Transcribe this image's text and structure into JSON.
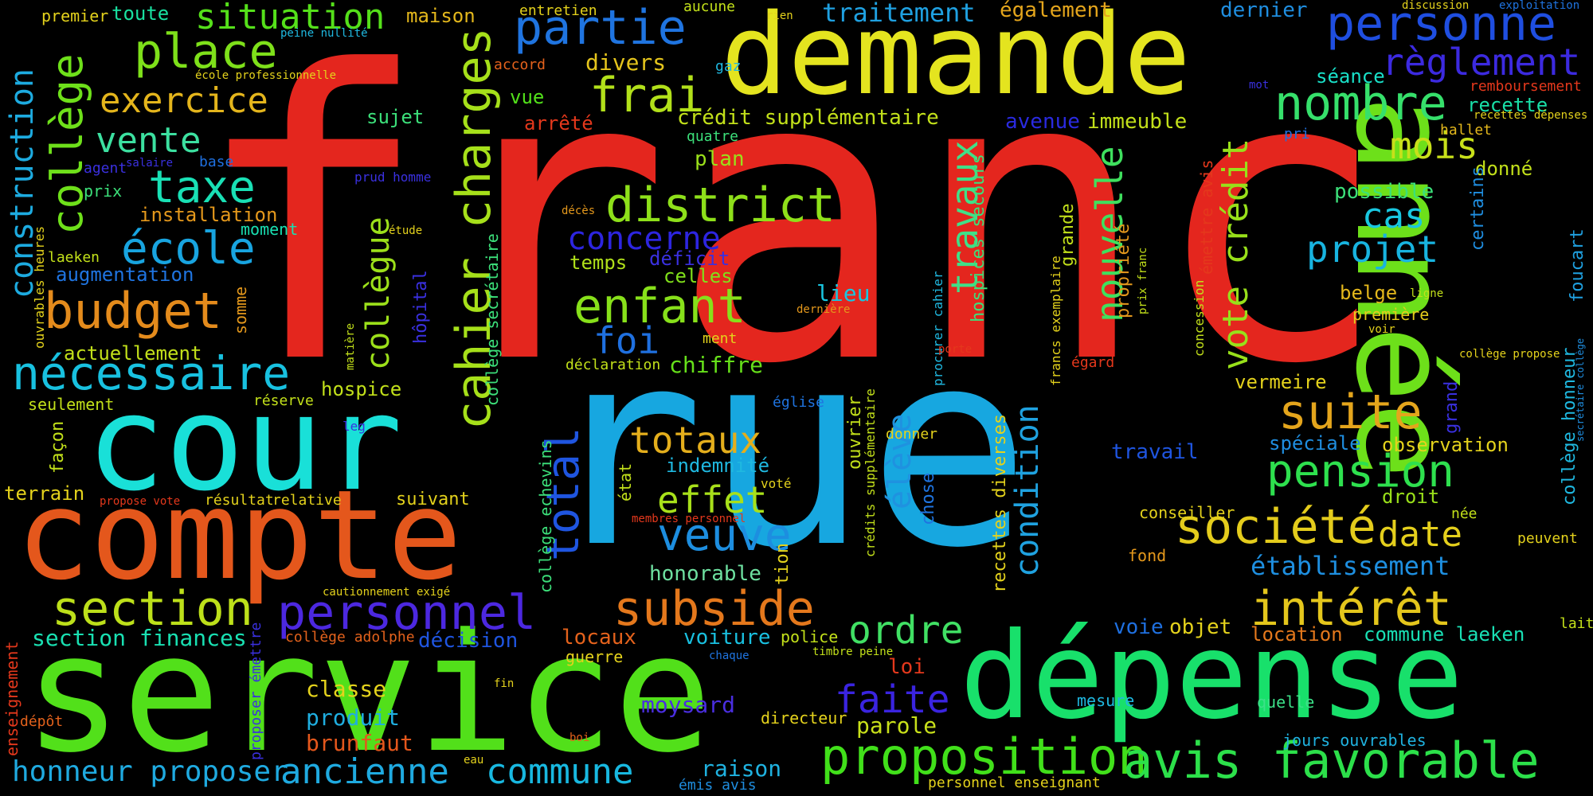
{
  "words": [
    {
      "text": "franc",
      "color": "#e4261e"
    },
    {
      "text": "rue",
      "color": "#17a7e0"
    },
    {
      "text": "année",
      "color": "#6de01a"
    },
    {
      "text": "service",
      "color": "#52e01a"
    },
    {
      "text": "demande",
      "color": "#e4e41f"
    },
    {
      "text": "dépense",
      "color": "#18e06b"
    },
    {
      "text": "compte",
      "color": "#e4571c"
    },
    {
      "text": "cour",
      "color": "#19e0d8"
    },
    {
      "text": "cahier charges",
      "color": "#a6e01a"
    },
    {
      "text": "proposition",
      "color": "#41e01a"
    },
    {
      "text": "avis favorable",
      "color": "#2ce04a"
    },
    {
      "text": "personnel",
      "color": "#4c28e0"
    },
    {
      "text": "subside",
      "color": "#e4781c"
    },
    {
      "text": "section",
      "color": "#bde01a"
    },
    {
      "text": "district",
      "color": "#8ee01a"
    },
    {
      "text": "enfant",
      "color": "#87e01a"
    },
    {
      "text": "nécessaire",
      "color": "#18c1e0"
    },
    {
      "text": "budget",
      "color": "#e48b1c"
    },
    {
      "text": "place",
      "color": "#7ee01a"
    },
    {
      "text": "situation",
      "color": "#55e01a"
    },
    {
      "text": "partie",
      "color": "#1f74e0"
    },
    {
      "text": "personne",
      "color": "#1f4ee0"
    },
    {
      "text": "nombre",
      "color": "#36e06b"
    },
    {
      "text": "frai",
      "color": "#b2e01a"
    },
    {
      "text": "société",
      "color": "#e4cc1c"
    },
    {
      "text": "pension",
      "color": "#2ee04e"
    },
    {
      "text": "intérêt",
      "color": "#e4c61c"
    },
    {
      "text": "suite",
      "color": "#e4a51c"
    },
    {
      "text": "veuve",
      "color": "#1d8ee0"
    },
    {
      "text": "total",
      "color": "#1f55e0"
    },
    {
      "text": "taxe",
      "color": "#19e0b5"
    },
    {
      "text": "école",
      "color": "#18a4e0"
    },
    {
      "text": "exercice",
      "color": "#e4b51c"
    },
    {
      "text": "vente",
      "color": "#3ce0a0"
    },
    {
      "text": "collège",
      "color": "#6ee01a"
    },
    {
      "text": "construction",
      "color": "#1dabe0"
    },
    {
      "text": "règlement",
      "color": "#3c2ae0"
    },
    {
      "text": "ordre",
      "color": "#41e064"
    },
    {
      "text": "effet",
      "color": "#a8e01a"
    },
    {
      "text": "faite",
      "color": "#3a24e0"
    },
    {
      "text": "totaux",
      "color": "#e4ae1c"
    },
    {
      "text": "foi",
      "color": "#1f70e0"
    },
    {
      "text": "projet",
      "color": "#18b4e0"
    },
    {
      "text": "mois",
      "color": "#c8e01a"
    },
    {
      "text": "cas",
      "color": "#19c7e0"
    },
    {
      "text": "date",
      "color": "#e4cf1c"
    },
    {
      "text": "établissement",
      "color": "#1e8fe0"
    },
    {
      "text": "travaux",
      "color": "#3fe088"
    },
    {
      "text": "nouvelle",
      "color": "#3fe05e"
    },
    {
      "text": "vote crédit",
      "color": "#98e01a"
    },
    {
      "text": "condition",
      "color": "#1fa2e0"
    },
    {
      "text": "collègue",
      "color": "#9ce01a"
    },
    {
      "text": "commune",
      "color": "#18b8e0"
    },
    {
      "text": "ancienne",
      "color": "#1faae0"
    },
    {
      "text": "honneur proposer",
      "color": "#1faae0"
    },
    {
      "text": "concerne",
      "color": "#2d25e0"
    },
    {
      "text": "traitement",
      "color": "#1fa0e0"
    },
    {
      "text": "élève",
      "color": "#1f92e0"
    },
    {
      "text": "moysard",
      "color": "#4a2ee0"
    },
    {
      "text": "brunfaut",
      "color": "#e4571c"
    },
    {
      "text": "produit",
      "color": "#1faee0"
    },
    {
      "text": "classe",
      "color": "#e4d21c"
    },
    {
      "text": "section finances",
      "color": "#19e0b2"
    },
    {
      "text": "raison",
      "color": "#1fb2e0"
    },
    {
      "text": "parole",
      "color": "#c8e01a"
    },
    {
      "text": "chiffre",
      "color": "#66e01a"
    },
    {
      "text": "indemnité",
      "color": "#1fb8e0"
    },
    {
      "text": "temps",
      "color": "#b0e01a"
    },
    {
      "text": "déficit",
      "color": "#3a30e0"
    },
    {
      "text": "celles",
      "color": "#80e01a"
    },
    {
      "text": "lieu",
      "color": "#19c5e0"
    },
    {
      "text": "crédit supplémentaire",
      "color": "#c2e01a"
    },
    {
      "text": "divers",
      "color": "#e4c41c"
    },
    {
      "text": "vue",
      "color": "#52e01a"
    },
    {
      "text": "arrêté",
      "color": "#e4381c"
    },
    {
      "text": "plan",
      "color": "#9ae01a"
    },
    {
      "text": "également",
      "color": "#e4a51c"
    },
    {
      "text": "dernier",
      "color": "#1f8ee0"
    },
    {
      "text": "avenue",
      "color": "#2a2ae0"
    },
    {
      "text": "immeuble",
      "color": "#c2e01a"
    },
    {
      "text": "séance",
      "color": "#19e0c8"
    },
    {
      "text": "recette",
      "color": "#19e0a8"
    },
    {
      "text": "donné",
      "color": "#c2e01a"
    },
    {
      "text": "possible",
      "color": "#3ce07a"
    },
    {
      "text": "belge",
      "color": "#e4b81c"
    },
    {
      "text": "première",
      "color": "#e4cc1c"
    },
    {
      "text": "observation",
      "color": "#e4d21c"
    },
    {
      "text": "spéciale",
      "color": "#1f8ee0"
    },
    {
      "text": "droit",
      "color": "#9ae01a"
    },
    {
      "text": "vermeire",
      "color": "#e4d21c"
    },
    {
      "text": "conseiller",
      "color": "#e4d21c"
    },
    {
      "text": "fond",
      "color": "#e4981c"
    },
    {
      "text": "location",
      "color": "#e4781c"
    },
    {
      "text": "commune laeken",
      "color": "#19e0b5"
    },
    {
      "text": "objet",
      "color": "#e4d21c"
    },
    {
      "text": "voie",
      "color": "#1f70e0"
    },
    {
      "text": "travail",
      "color": "#1f55e0"
    },
    {
      "text": "voiture",
      "color": "#19c0e0"
    },
    {
      "text": "police",
      "color": "#c2e01a"
    },
    {
      "text": "locaux",
      "color": "#e4621c"
    },
    {
      "text": "décision",
      "color": "#1f55e0"
    },
    {
      "text": "guerre",
      "color": "#e4d21c"
    },
    {
      "text": "honorable",
      "color": "#6ee0a0"
    },
    {
      "text": "directeur",
      "color": "#e4d21c"
    },
    {
      "text": "loi",
      "color": "#e4381c"
    },
    {
      "text": "mesure",
      "color": "#1fb8e0"
    },
    {
      "text": "quelle",
      "color": "#3ce088"
    },
    {
      "text": "jours ouvrables",
      "color": "#1fb2e0"
    },
    {
      "text": "personnel enseignant",
      "color": "#e4d21c"
    },
    {
      "text": "émis avis",
      "color": "#1f8ee0"
    },
    {
      "text": "installation",
      "color": "#e4981c"
    },
    {
      "text": "augmentation",
      "color": "#1f74e0"
    },
    {
      "text": "actuellement",
      "color": "#c2e01a"
    },
    {
      "text": "hospice",
      "color": "#c2e01a"
    },
    {
      "text": "terrain",
      "color": "#e4d21c"
    },
    {
      "text": "résultat",
      "color": "#e4d21c"
    },
    {
      "text": "relative",
      "color": "#e4d21c"
    },
    {
      "text": "suivant",
      "color": "#e4d21c"
    },
    {
      "text": "seulement",
      "color": "#c2e01a"
    },
    {
      "text": "réserve",
      "color": "#c2e01a"
    },
    {
      "text": "sujet",
      "color": "#3ce07a"
    },
    {
      "text": "maison",
      "color": "#e4b81c"
    },
    {
      "text": "toute",
      "color": "#19e0a0"
    },
    {
      "text": "premier",
      "color": "#e4d21c"
    },
    {
      "text": "agent",
      "color": "#3a30e0"
    },
    {
      "text": "prix",
      "color": "#3ce07a"
    },
    {
      "text": "moment",
      "color": "#19e0b2"
    },
    {
      "text": "laeken",
      "color": "#c2e01a"
    },
    {
      "text": "accord",
      "color": "#e4621c"
    },
    {
      "text": "entretien",
      "color": "#e4d21c"
    },
    {
      "text": "aucune",
      "color": "#c2e01a"
    },
    {
      "text": "gaz",
      "color": "#1fb8e0"
    },
    {
      "text": "quatre",
      "color": "#3ce07a"
    },
    {
      "text": "ment",
      "color": "#e4d21c"
    },
    {
      "text": "déclaration",
      "color": "#c2e01a"
    },
    {
      "text": "remboursement",
      "color": "#e4381c"
    },
    {
      "text": "hallet",
      "color": "#e4b81c"
    },
    {
      "text": "pri",
      "color": "#1f70e0"
    },
    {
      "text": "peuvent",
      "color": "#e4d21c"
    },
    {
      "text": "née",
      "color": "#c2e01a"
    },
    {
      "text": "lait",
      "color": "#c2e01a"
    },
    {
      "text": "somme",
      "color": "#e4981c"
    },
    {
      "text": "façon",
      "color": "#c2e01a"
    },
    {
      "text": "enseignement",
      "color": "#e4381c"
    },
    {
      "text": "dépôt",
      "color": "#e4621c"
    },
    {
      "text": "proposer émettre",
      "color": "#3a30e0"
    },
    {
      "text": "ouvrables heures",
      "color": "#e4d21c"
    },
    {
      "text": "hôpital",
      "color": "#3a30e0"
    },
    {
      "text": "collège secrétaire",
      "color": "#3ce07a"
    },
    {
      "text": "collège echevins",
      "color": "#3ce07a"
    },
    {
      "text": "ouvrier",
      "color": "#c2e01a"
    },
    {
      "text": "crédits supplémentaire",
      "color": "#c2e01a"
    },
    {
      "text": "chose",
      "color": "#1f74e0"
    },
    {
      "text": "état",
      "color": "#c2e01a"
    },
    {
      "text": "tion",
      "color": "#e4d21c"
    },
    {
      "text": "hospices secours",
      "color": "#3ce07a"
    },
    {
      "text": "recettes diverses",
      "color": "#e4d21c"
    },
    {
      "text": "grande",
      "color": "#c2e01a"
    },
    {
      "text": "propriété",
      "color": "#e4981c"
    },
    {
      "text": "francs exemplaire",
      "color": "#e4d21c"
    },
    {
      "text": "émettre avis",
      "color": "#e4381c"
    },
    {
      "text": "concession",
      "color": "#c2e01a"
    },
    {
      "text": "collège honneur",
      "color": "#1fb8e0"
    },
    {
      "text": "grand",
      "color": "#3a30e0"
    },
    {
      "text": "foucart",
      "color": "#1fa0e0"
    },
    {
      "text": "certains",
      "color": "#1f8ee0"
    },
    {
      "text": "donner",
      "color": "#e4d21c"
    },
    {
      "text": "voté",
      "color": "#e4d21c"
    },
    {
      "text": "église",
      "color": "#1f74e0"
    },
    {
      "text": "égard",
      "color": "#e4381c"
    },
    {
      "text": "procurer cahier",
      "color": "#1fb8e0"
    },
    {
      "text": "porte",
      "color": "#e4381c"
    },
    {
      "text": "prix franc",
      "color": "#c2e01a"
    },
    {
      "text": "dernière",
      "color": "#e4981c"
    },
    {
      "text": "leg",
      "color": "#3a30e0"
    },
    {
      "text": "prud homme",
      "color": "#3a30e0"
    },
    {
      "text": "étude",
      "color": "#e4d21c"
    },
    {
      "text": "matière",
      "color": "#c2e01a"
    },
    {
      "text": "décès",
      "color": "#e4981c"
    },
    {
      "text": "base",
      "color": "#1f70e0"
    },
    {
      "text": "salaire",
      "color": "#3a30e0"
    },
    {
      "text": "rien",
      "color": "#e4d21c"
    },
    {
      "text": "mot",
      "color": "#3a30e0"
    },
    {
      "text": "exploitation",
      "color": "#1f74e0"
    },
    {
      "text": "discussion",
      "color": "#e4d21c"
    },
    {
      "text": "recettes dépenses",
      "color": "#e4d21c"
    },
    {
      "text": "ligne",
      "color": "#c2e01a"
    },
    {
      "text": "voir",
      "color": "#e4d21c"
    },
    {
      "text": "collège propose",
      "color": "#e4d21c"
    },
    {
      "text": "secrétaire collège",
      "color": "#1f8ee0"
    },
    {
      "text": "peine nullité",
      "color": "#1fb8e0"
    },
    {
      "text": "école professionnelle",
      "color": "#e4d21c"
    },
    {
      "text": "propose vote",
      "color": "#e4381c"
    },
    {
      "text": "cautionnement exigé",
      "color": "#e4d21c"
    },
    {
      "text": "collège adolphe",
      "color": "#e4621c"
    },
    {
      "text": "membres personnel",
      "color": "#e4381c"
    },
    {
      "text": "chaque",
      "color": "#1f74e0"
    },
    {
      "text": "timbre peine",
      "color": "#c2e01a"
    },
    {
      "text": "fin",
      "color": "#e4d21c"
    },
    {
      "text": "boi",
      "color": "#e4621c"
    },
    {
      "text": "eau",
      "color": "#e4d21c"
    }
  ]
}
